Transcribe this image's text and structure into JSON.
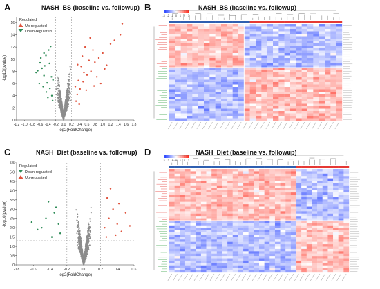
{
  "figure": {
    "panels": [
      {
        "letter": "A",
        "title": "NASH_BS (baseline vs. followup)"
      },
      {
        "letter": "B",
        "title": "NASH_BS (baseline vs. followup)"
      },
      {
        "letter": "C",
        "title": "NASH_Diet (baseline vs. followup)"
      },
      {
        "letter": "D",
        "title": "NASH_Diet (baseline vs. followup)"
      }
    ]
  },
  "chart_data": [
    {
      "type": "scatter",
      "panel": "A",
      "title": "NASH_BS (baseline vs. followup)",
      "xlabel": "log2(FoldChange)",
      "ylabel": "-log10(pvalue)",
      "xlim": [
        -1.2,
        1.8
      ],
      "ylim": [
        0,
        17
      ],
      "xticks": [
        "-1.2",
        "-1.0",
        "-0.8",
        "-0.6",
        "-0.4",
        "-0.2",
        "0.0",
        "0.2",
        "0.4",
        "0.6",
        "0.8",
        "1.0",
        "1.2",
        "1.4",
        "1.6",
        "1.8"
      ],
      "yticks": [
        "0",
        "2",
        "4",
        "6",
        "8",
        "10",
        "12",
        "14",
        "16"
      ],
      "legend_title": "Regulated",
      "legend": [
        "Up-regulated",
        "Down-regulated"
      ],
      "legend_position": "top-left",
      "colors": {
        "up": "#e0533d",
        "down": "#2e8b57",
        "ns": "#8c8c8c"
      },
      "thresholds": {
        "x": [
          -0.2,
          0.2
        ],
        "y": 1.3
      },
      "series": [
        {
          "name": "Up-regulated",
          "points": [
            [
              0.35,
              4.2
            ],
            [
              0.42,
              5.1
            ],
            [
              0.5,
              6.3
            ],
            [
              0.6,
              7.4
            ],
            [
              0.7,
              8.0
            ],
            [
              0.8,
              9.5
            ],
            [
              0.9,
              10.2
            ],
            [
              1.0,
              11.0
            ],
            [
              1.1,
              9.0
            ],
            [
              1.2,
              12.5
            ],
            [
              1.3,
              13.1
            ],
            [
              1.45,
              14.0
            ],
            [
              1.5,
              15.8
            ],
            [
              0.55,
              12.0
            ],
            [
              0.65,
              9.8
            ],
            [
              0.38,
              6.5
            ],
            [
              0.45,
              8.8
            ],
            [
              0.75,
              11.5
            ],
            [
              0.85,
              7.1
            ],
            [
              0.95,
              6.0
            ],
            [
              0.32,
              3.1
            ],
            [
              0.4,
              2.6
            ],
            [
              0.3,
              5.5
            ],
            [
              0.48,
              10.5
            ],
            [
              0.58,
              4.9
            ],
            [
              1.05,
              8.4
            ],
            [
              0.68,
              13.5
            ],
            [
              0.78,
              5.6
            ],
            [
              0.36,
              9.1
            ],
            [
              0.52,
              7.8
            ]
          ]
        },
        {
          "name": "Down-regulated",
          "points": [
            [
              -0.3,
              4.0
            ],
            [
              -0.35,
              5.2
            ],
            [
              -0.42,
              6.1
            ],
            [
              -0.5,
              7.3
            ],
            [
              -0.55,
              8.5
            ],
            [
              -0.6,
              9.4
            ],
            [
              -0.45,
              10.6
            ],
            [
              -0.38,
              11.5
            ],
            [
              -0.7,
              7.8
            ],
            [
              -0.33,
              12.1
            ],
            [
              -0.28,
              3.2
            ],
            [
              -0.62,
              6.0
            ],
            [
              -0.48,
              8.9
            ],
            [
              -0.4,
              3.7
            ],
            [
              -0.52,
              5.5
            ],
            [
              -0.36,
              9.3
            ],
            [
              -0.58,
              10.2
            ],
            [
              -0.31,
              7.1
            ],
            [
              -0.44,
              4.6
            ],
            [
              -0.66,
              8.1
            ],
            [
              -0.27,
              6.6
            ],
            [
              -0.5,
              11.0
            ]
          ]
        }
      ]
    },
    {
      "type": "heatmap",
      "panel": "B",
      "title": "NASH_BS (baseline vs. followup)",
      "colorbar_ticks": [
        "-3",
        "-2",
        "-1",
        "0",
        "1",
        "2",
        "3"
      ],
      "group_colors": {
        "baseline": "#2f5fb0",
        "followup": "#e53935"
      }
    },
    {
      "type": "scatter",
      "panel": "C",
      "title": "NASH_Diet (baseline vs. followup)",
      "xlabel": "log2(FoldChange)",
      "ylabel": "-log10(pvalue)",
      "xlim": [
        -0.8,
        0.6
      ],
      "ylim": [
        0,
        5.5
      ],
      "xticks": [
        "-0.8",
        "-0.6",
        "-0.4",
        "-0.2",
        "0.0",
        "0.2",
        "0.4",
        "0.6"
      ],
      "yticks": [
        "0",
        "0.5",
        "1.0",
        "1.5",
        "2.0",
        "2.5",
        "3.0",
        "3.5",
        "4.0",
        "4.5",
        "5.0",
        "5.5"
      ],
      "legend_title": "Regulated",
      "legend": [
        "Down-regulated",
        "Up-regulated"
      ],
      "legend_position": "top-left",
      "colors": {
        "up": "#e0533d",
        "down": "#2e8b57",
        "ns": "#8c8c8c"
      },
      "thresholds": {
        "x": [
          -0.2,
          0.2
        ],
        "y": 1.3
      },
      "series": [
        {
          "name": "Up-regulated",
          "points": [
            [
              0.25,
              2.0
            ],
            [
              0.3,
              2.5
            ],
            [
              0.35,
              3.0
            ],
            [
              0.28,
              3.6
            ],
            [
              0.4,
              2.2
            ],
            [
              0.45,
              1.8
            ],
            [
              0.5,
              2.8
            ],
            [
              0.32,
              4.1
            ],
            [
              0.42,
              3.3
            ],
            [
              0.38,
              1.6
            ],
            [
              0.27,
              1.5
            ],
            [
              0.55,
              2.1
            ]
          ]
        },
        {
          "name": "Down-regulated",
          "points": [
            [
              -0.3,
              2.2
            ],
            [
              -0.35,
              2.8
            ],
            [
              -0.42,
              3.4
            ],
            [
              -0.5,
              2.0
            ],
            [
              -0.28,
              1.7
            ],
            [
              -0.38,
              1.5
            ],
            [
              -0.45,
              2.5
            ],
            [
              -0.55,
              1.9
            ],
            [
              -0.33,
              3.1
            ],
            [
              -0.62,
              2.3
            ]
          ]
        }
      ]
    },
    {
      "type": "heatmap",
      "panel": "D",
      "title": "NASH_Diet (baseline vs. followup)",
      "colorbar_ticks": [
        "-3",
        "-2",
        "-1",
        "0",
        "1",
        "2",
        "3"
      ],
      "group_colors": {
        "baseline": "#2f5fb0",
        "followup": "#e53935"
      }
    }
  ]
}
